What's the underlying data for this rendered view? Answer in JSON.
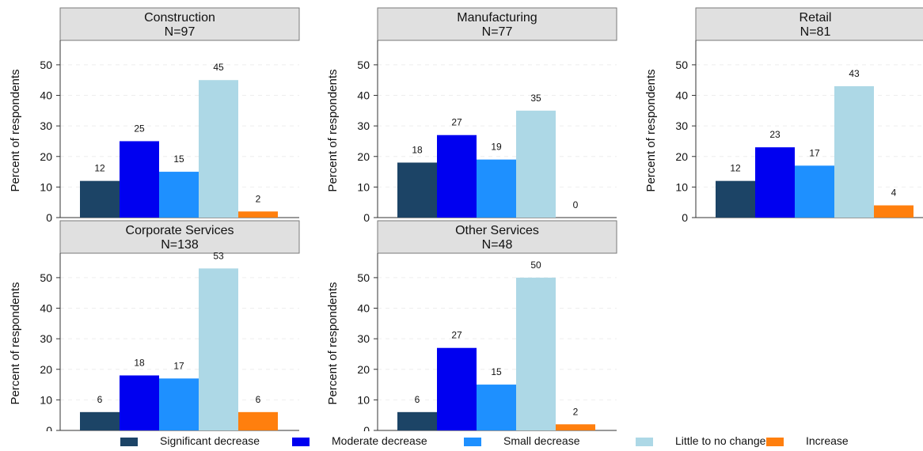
{
  "chart_data": [
    {
      "type": "bar",
      "title": "Construction",
      "subtitle": "N=97",
      "ylabel": "Percent of respondents",
      "ylim": [
        0,
        58
      ],
      "yticks": [
        0,
        10,
        20,
        30,
        40,
        50
      ],
      "grid": true,
      "categories": [
        "Significant decrease",
        "Moderate decrease",
        "Small decrease",
        "Little to no change",
        "Increase"
      ],
      "values": [
        12,
        25,
        15,
        45,
        2
      ]
    },
    {
      "type": "bar",
      "title": "Manufacturing",
      "subtitle": "N=77",
      "ylabel": "Percent of respondents",
      "ylim": [
        0,
        58
      ],
      "yticks": [
        0,
        10,
        20,
        30,
        40,
        50
      ],
      "grid": true,
      "categories": [
        "Significant decrease",
        "Moderate decrease",
        "Small decrease",
        "Little to no change",
        "Increase"
      ],
      "values": [
        18,
        27,
        19,
        35,
        0
      ]
    },
    {
      "type": "bar",
      "title": "Retail",
      "subtitle": "N=81",
      "ylabel": "Percent of respondents",
      "ylim": [
        0,
        58
      ],
      "yticks": [
        0,
        10,
        20,
        30,
        40,
        50
      ],
      "grid": true,
      "categories": [
        "Significant decrease",
        "Moderate decrease",
        "Small decrease",
        "Little to no change",
        "Increase"
      ],
      "values": [
        12,
        23,
        17,
        43,
        4
      ]
    },
    {
      "type": "bar",
      "title": "Corporate Services",
      "subtitle": "N=138",
      "ylabel": "Percent of respondents",
      "ylim": [
        0,
        58
      ],
      "yticks": [
        0,
        10,
        20,
        30,
        40,
        50
      ],
      "grid": true,
      "categories": [
        "Significant decrease",
        "Moderate decrease",
        "Small decrease",
        "Little to no change",
        "Increase"
      ],
      "values": [
        6,
        18,
        17,
        53,
        6
      ]
    },
    {
      "type": "bar",
      "title": "Other Services",
      "subtitle": "N=48",
      "ylabel": "Percent of respondents",
      "ylim": [
        0,
        58
      ],
      "yticks": [
        0,
        10,
        20,
        30,
        40,
        50
      ],
      "grid": true,
      "categories": [
        "Significant decrease",
        "Moderate decrease",
        "Small decrease",
        "Little to no change",
        "Increase"
      ],
      "values": [
        6,
        27,
        15,
        50,
        2
      ]
    }
  ],
  "legend": {
    "placement": "bottom",
    "items": [
      {
        "label": "Significant decrease",
        "color": "#1c4466"
      },
      {
        "label": "Moderate decrease",
        "color": "#0000f0"
      },
      {
        "label": "Small decrease",
        "color": "#1e90ff"
      },
      {
        "label": "Little to no change",
        "color": "#add8e6"
      },
      {
        "label": "Increase",
        "color": "#ff7f0e"
      }
    ]
  },
  "colors": {
    "header_fill": "#e0e0e0",
    "header_border": "#7a7a7a",
    "gridline": "#eeeeee"
  }
}
